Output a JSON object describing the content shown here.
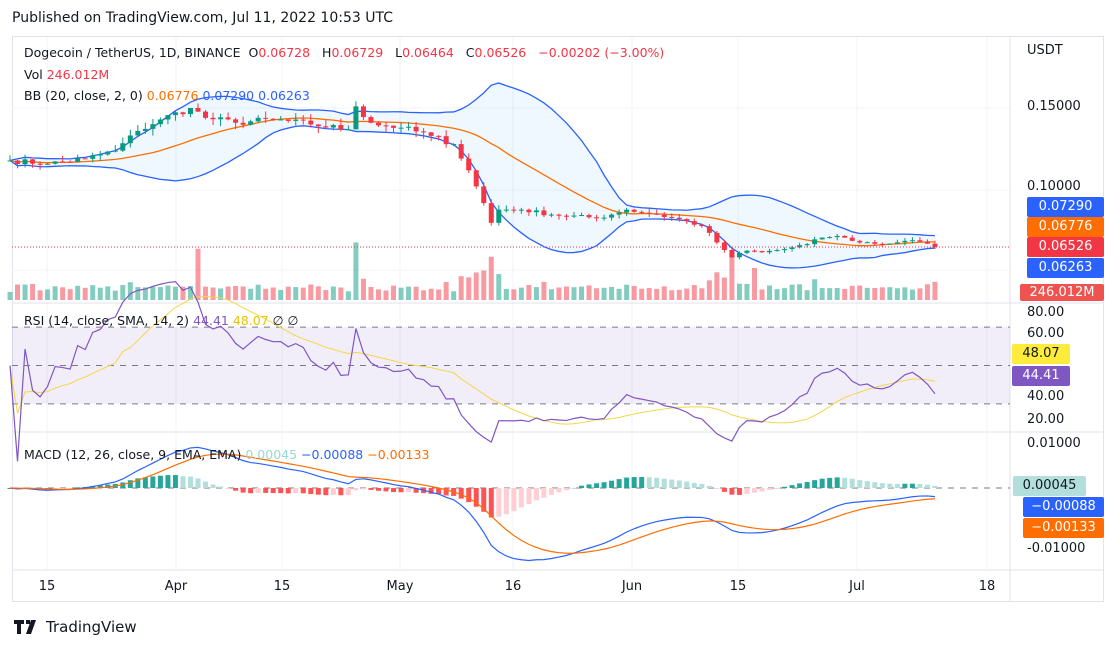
{
  "header": {
    "published": "Published on TradingView.com, Jul 11, 2022 10:53 UTC"
  },
  "legend": {
    "symbol": "Dogecoin / TetherUS, 1D, BINANCE",
    "o_label": "O",
    "o": "0.06728",
    "h_label": "H",
    "h": "0.06729",
    "l_label": "L",
    "l": "0.06464",
    "c_label": "C",
    "c": "0.06526",
    "change": "−0.00202 (−3.00%)",
    "vol_label": "Vol",
    "vol": "246.012M",
    "bb_label": "BB (20, close, 2, 0)",
    "bb_basis": "0.06776",
    "bb_upper": "0.07290",
    "bb_lower": "0.06263",
    "rsi_label": "RSI (14, close, SMA, 14, 2)",
    "rsi": "44.41",
    "rsi_ma": "48.07",
    "rsi_x1": "∅",
    "rsi_x2": "∅",
    "macd_label": "MACD (12, 26, close, 9, EMA, EMA)",
    "macd_hist": "0.00045",
    "macd": "−0.00088",
    "macd_signal": "−0.00133"
  },
  "axis": {
    "currency": "USDT",
    "price_ticks": [
      "0.15000",
      "0.10000"
    ],
    "rsi_ticks": [
      "80.00",
      "60.00",
      "40.00",
      "20.00"
    ],
    "macd_ticks": [
      "0.01000",
      "-0.01000"
    ],
    "time_ticks": [
      "15",
      "Apr",
      "15",
      "May",
      "16",
      "Jun",
      "15",
      "Jul",
      "18"
    ]
  },
  "tags": {
    "upper": "0.07290",
    "basis": "0.06776",
    "close": "0.06526",
    "lower": "0.06263",
    "volume": "246.012M",
    "rsi_ma": "48.07",
    "rsi": "44.41",
    "hist": "0.00045",
    "macd": "−0.00088",
    "signal": "−0.00133"
  },
  "colors": {
    "up": "#089981",
    "down": "#f23645",
    "basis": "#ff6d00",
    "band": "#2962ff",
    "rsi": "#7e57c2",
    "rsi_ma": "#f5d54a",
    "hist_up": "#26a69a",
    "hist_down": "#ff5252"
  },
  "chart_data": {
    "type": "candlestick",
    "title": "Dogecoin / TetherUS, 1D, BINANCE",
    "x_start": "2022-03-10",
    "x_end": "2022-07-11",
    "close_anchors": [
      [
        0,
        0.118
      ],
      [
        5,
        0.116
      ],
      [
        10,
        0.119
      ],
      [
        14,
        0.124
      ],
      [
        17,
        0.136
      ],
      [
        20,
        0.143
      ],
      [
        24,
        0.15
      ],
      [
        26,
        0.144
      ],
      [
        30,
        0.141
      ],
      [
        35,
        0.143
      ],
      [
        40,
        0.14
      ],
      [
        45,
        0.137
      ],
      [
        46,
        0.151
      ],
      [
        48,
        0.141
      ],
      [
        52,
        0.138
      ],
      [
        56,
        0.133
      ],
      [
        59,
        0.128
      ],
      [
        61,
        0.112
      ],
      [
        63,
        0.092
      ],
      [
        64,
        0.08
      ],
      [
        65,
        0.088
      ],
      [
        68,
        0.088
      ],
      [
        72,
        0.085
      ],
      [
        78,
        0.083
      ],
      [
        80,
        0.085
      ],
      [
        82,
        0.088
      ],
      [
        86,
        0.085
      ],
      [
        90,
        0.081
      ],
      [
        92,
        0.078
      ],
      [
        94,
        0.068
      ],
      [
        96,
        0.059
      ],
      [
        98,
        0.063
      ],
      [
        100,
        0.062
      ],
      [
        103,
        0.064
      ],
      [
        106,
        0.067
      ],
      [
        108,
        0.071
      ],
      [
        110,
        0.072
      ],
      [
        112,
        0.069
      ],
      [
        116,
        0.067
      ],
      [
        119,
        0.069
      ],
      [
        121,
        0.0685
      ],
      [
        122,
        0.06728
      ],
      [
        123,
        0.06526
      ]
    ],
    "volume_spikes": [
      [
        25,
        1.6
      ],
      [
        46,
        1.8
      ],
      [
        64,
        1.35
      ],
      [
        96,
        1.5
      ],
      [
        99,
        1.0
      ]
    ],
    "price_range": [
      0.045,
      0.19
    ],
    "rsi_range": [
      20,
      80
    ],
    "macd_range": [
      -0.012,
      0.012
    ]
  }
}
